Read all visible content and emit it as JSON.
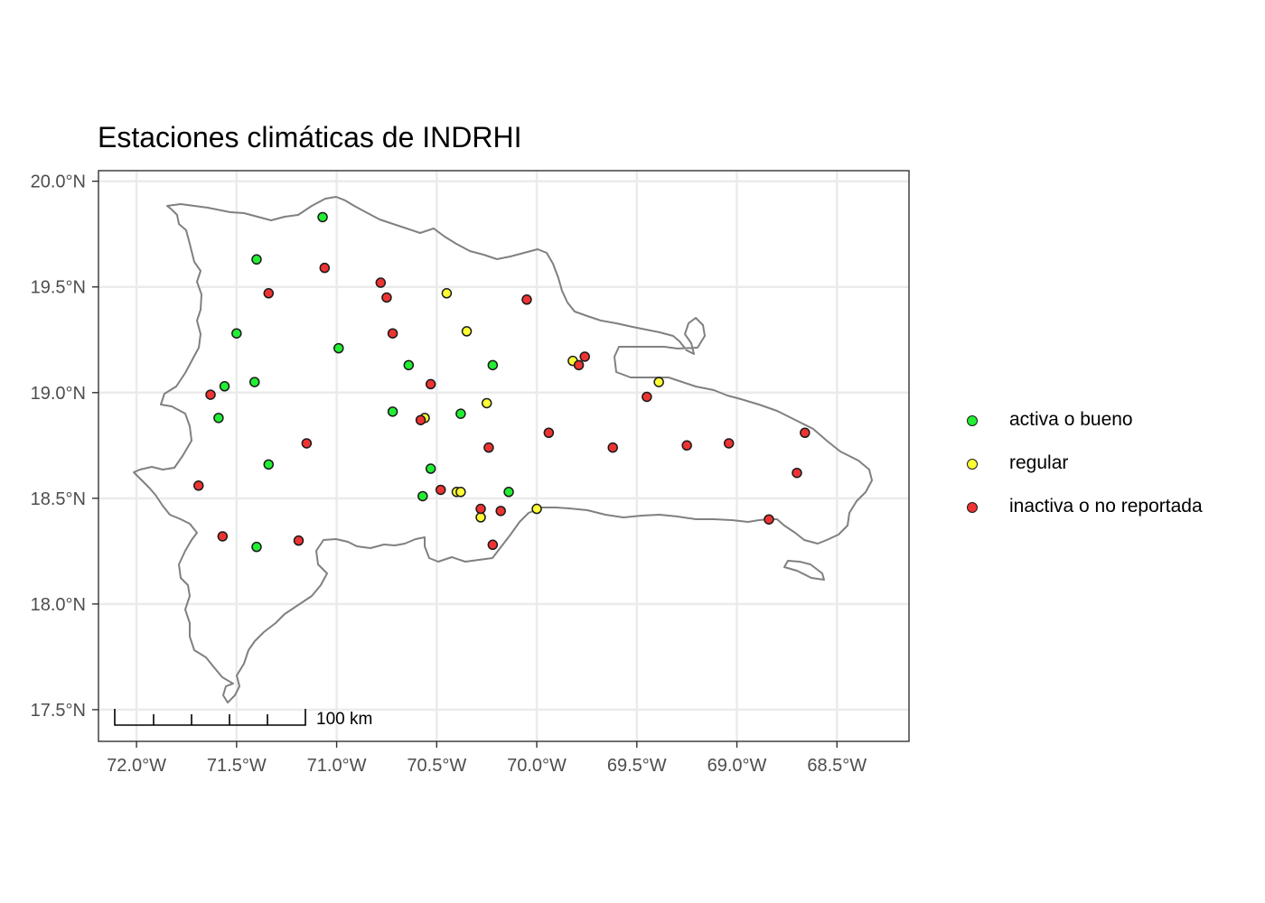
{
  "chart_data": {
    "type": "scatter",
    "title": "Estaciones climáticas de INDRHI",
    "xlabel": "",
    "ylabel": "",
    "xlim": [
      -72.19,
      -68.14
    ],
    "ylim": [
      17.35,
      20.05
    ],
    "x_ticks": [
      {
        "value": -72.0,
        "label": "72.0°W"
      },
      {
        "value": -71.5,
        "label": "71.5°W"
      },
      {
        "value": -71.0,
        "label": "71.0°W"
      },
      {
        "value": -70.5,
        "label": "70.5°W"
      },
      {
        "value": -70.0,
        "label": "70.0°W"
      },
      {
        "value": -69.5,
        "label": "69.5°W"
      },
      {
        "value": -69.0,
        "label": "69.0°W"
      },
      {
        "value": -68.5,
        "label": "68.5°W"
      }
    ],
    "y_ticks": [
      {
        "value": 20.0,
        "label": "20.0°N"
      },
      {
        "value": 19.5,
        "label": "19.5°N"
      },
      {
        "value": 19.0,
        "label": "19.0°N"
      },
      {
        "value": 18.5,
        "label": "18.5°N"
      },
      {
        "value": 18.0,
        "label": "18.0°N"
      },
      {
        "value": 17.5,
        "label": "17.5°N"
      }
    ],
    "grid": true,
    "legend_position": "right",
    "scale_bar": {
      "label": "100 km",
      "length_km": 100
    },
    "series": [
      {
        "name": "activa o bueno",
        "color": "#22ee33",
        "points": [
          [
            -71.07,
            19.83
          ],
          [
            -71.4,
            19.63
          ],
          [
            -71.5,
            19.28
          ],
          [
            -71.56,
            19.03
          ],
          [
            -71.41,
            19.05
          ],
          [
            -71.59,
            18.88
          ],
          [
            -71.34,
            18.66
          ],
          [
            -71.4,
            18.27
          ],
          [
            -70.99,
            19.21
          ],
          [
            -70.64,
            19.13
          ],
          [
            -70.72,
            18.91
          ],
          [
            -70.38,
            18.9
          ],
          [
            -70.22,
            19.13
          ],
          [
            -70.53,
            18.64
          ],
          [
            -70.57,
            18.51
          ],
          [
            -70.14,
            18.53
          ]
        ]
      },
      {
        "name": "regular",
        "color": "#ffff33",
        "points": [
          [
            -70.45,
            19.47
          ],
          [
            -70.35,
            19.29
          ],
          [
            -69.82,
            19.15
          ],
          [
            -69.39,
            19.05
          ],
          [
            -70.25,
            18.95
          ],
          [
            -70.56,
            18.88
          ],
          [
            -70.4,
            18.53
          ],
          [
            -70.38,
            18.53
          ],
          [
            -70.28,
            18.41
          ],
          [
            -70.0,
            18.45
          ]
        ]
      },
      {
        "name": "inactiva o no reportada",
        "color": "#ee3333",
        "points": [
          [
            -71.06,
            19.59
          ],
          [
            -71.34,
            19.47
          ],
          [
            -70.78,
            19.52
          ],
          [
            -70.75,
            19.45
          ],
          [
            -70.72,
            19.28
          ],
          [
            -70.05,
            19.44
          ],
          [
            -69.76,
            19.17
          ],
          [
            -69.79,
            19.13
          ],
          [
            -70.53,
            19.04
          ],
          [
            -70.58,
            18.87
          ],
          [
            -69.45,
            18.98
          ],
          [
            -71.63,
            18.99
          ],
          [
            -71.15,
            18.76
          ],
          [
            -70.24,
            18.74
          ],
          [
            -69.94,
            18.81
          ],
          [
            -69.62,
            18.74
          ],
          [
            -69.25,
            18.75
          ],
          [
            -69.04,
            18.76
          ],
          [
            -68.66,
            18.81
          ],
          [
            -68.7,
            18.62
          ],
          [
            -71.69,
            18.56
          ],
          [
            -71.57,
            18.32
          ],
          [
            -71.19,
            18.3
          ],
          [
            -70.48,
            18.54
          ],
          [
            -70.28,
            18.45
          ],
          [
            -70.18,
            18.44
          ],
          [
            -70.22,
            18.28
          ],
          [
            -68.84,
            18.4
          ]
        ]
      }
    ]
  }
}
